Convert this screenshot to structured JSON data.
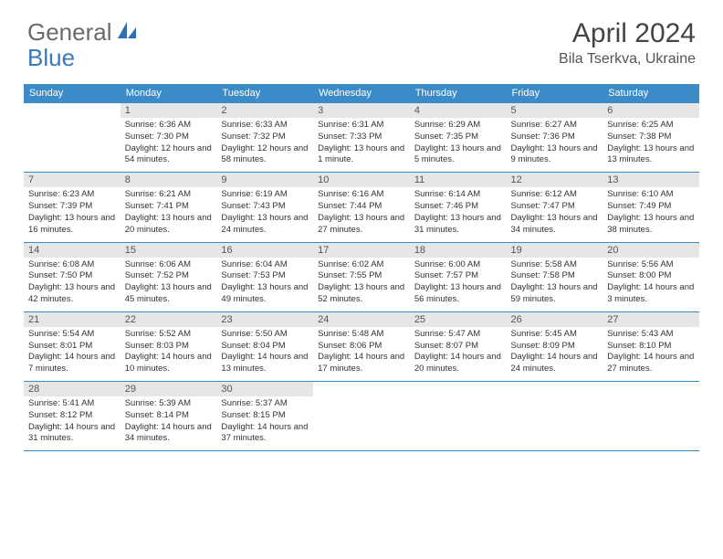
{
  "brand": {
    "part1": "General",
    "part2": "Blue"
  },
  "title": "April 2024",
  "location": "Bila Tserkva, Ukraine",
  "colors": {
    "header_bg": "#3b8bc9",
    "header_fg": "#ffffff",
    "daynum_bg": "#e6e6e6",
    "rule": "#3b8bc9",
    "text": "#333333"
  },
  "dayNames": [
    "Sunday",
    "Monday",
    "Tuesday",
    "Wednesday",
    "Thursday",
    "Friday",
    "Saturday"
  ],
  "weeks": [
    [
      {
        "n": "",
        "sr": "",
        "ss": "",
        "dl": ""
      },
      {
        "n": "1",
        "sr": "Sunrise: 6:36 AM",
        "ss": "Sunset: 7:30 PM",
        "dl": "Daylight: 12 hours and 54 minutes."
      },
      {
        "n": "2",
        "sr": "Sunrise: 6:33 AM",
        "ss": "Sunset: 7:32 PM",
        "dl": "Daylight: 12 hours and 58 minutes."
      },
      {
        "n": "3",
        "sr": "Sunrise: 6:31 AM",
        "ss": "Sunset: 7:33 PM",
        "dl": "Daylight: 13 hours and 1 minute."
      },
      {
        "n": "4",
        "sr": "Sunrise: 6:29 AM",
        "ss": "Sunset: 7:35 PM",
        "dl": "Daylight: 13 hours and 5 minutes."
      },
      {
        "n": "5",
        "sr": "Sunrise: 6:27 AM",
        "ss": "Sunset: 7:36 PM",
        "dl": "Daylight: 13 hours and 9 minutes."
      },
      {
        "n": "6",
        "sr": "Sunrise: 6:25 AM",
        "ss": "Sunset: 7:38 PM",
        "dl": "Daylight: 13 hours and 13 minutes."
      }
    ],
    [
      {
        "n": "7",
        "sr": "Sunrise: 6:23 AM",
        "ss": "Sunset: 7:39 PM",
        "dl": "Daylight: 13 hours and 16 minutes."
      },
      {
        "n": "8",
        "sr": "Sunrise: 6:21 AM",
        "ss": "Sunset: 7:41 PM",
        "dl": "Daylight: 13 hours and 20 minutes."
      },
      {
        "n": "9",
        "sr": "Sunrise: 6:19 AM",
        "ss": "Sunset: 7:43 PM",
        "dl": "Daylight: 13 hours and 24 minutes."
      },
      {
        "n": "10",
        "sr": "Sunrise: 6:16 AM",
        "ss": "Sunset: 7:44 PM",
        "dl": "Daylight: 13 hours and 27 minutes."
      },
      {
        "n": "11",
        "sr": "Sunrise: 6:14 AM",
        "ss": "Sunset: 7:46 PM",
        "dl": "Daylight: 13 hours and 31 minutes."
      },
      {
        "n": "12",
        "sr": "Sunrise: 6:12 AM",
        "ss": "Sunset: 7:47 PM",
        "dl": "Daylight: 13 hours and 34 minutes."
      },
      {
        "n": "13",
        "sr": "Sunrise: 6:10 AM",
        "ss": "Sunset: 7:49 PM",
        "dl": "Daylight: 13 hours and 38 minutes."
      }
    ],
    [
      {
        "n": "14",
        "sr": "Sunrise: 6:08 AM",
        "ss": "Sunset: 7:50 PM",
        "dl": "Daylight: 13 hours and 42 minutes."
      },
      {
        "n": "15",
        "sr": "Sunrise: 6:06 AM",
        "ss": "Sunset: 7:52 PM",
        "dl": "Daylight: 13 hours and 45 minutes."
      },
      {
        "n": "16",
        "sr": "Sunrise: 6:04 AM",
        "ss": "Sunset: 7:53 PM",
        "dl": "Daylight: 13 hours and 49 minutes."
      },
      {
        "n": "17",
        "sr": "Sunrise: 6:02 AM",
        "ss": "Sunset: 7:55 PM",
        "dl": "Daylight: 13 hours and 52 minutes."
      },
      {
        "n": "18",
        "sr": "Sunrise: 6:00 AM",
        "ss": "Sunset: 7:57 PM",
        "dl": "Daylight: 13 hours and 56 minutes."
      },
      {
        "n": "19",
        "sr": "Sunrise: 5:58 AM",
        "ss": "Sunset: 7:58 PM",
        "dl": "Daylight: 13 hours and 59 minutes."
      },
      {
        "n": "20",
        "sr": "Sunrise: 5:56 AM",
        "ss": "Sunset: 8:00 PM",
        "dl": "Daylight: 14 hours and 3 minutes."
      }
    ],
    [
      {
        "n": "21",
        "sr": "Sunrise: 5:54 AM",
        "ss": "Sunset: 8:01 PM",
        "dl": "Daylight: 14 hours and 7 minutes."
      },
      {
        "n": "22",
        "sr": "Sunrise: 5:52 AM",
        "ss": "Sunset: 8:03 PM",
        "dl": "Daylight: 14 hours and 10 minutes."
      },
      {
        "n": "23",
        "sr": "Sunrise: 5:50 AM",
        "ss": "Sunset: 8:04 PM",
        "dl": "Daylight: 14 hours and 13 minutes."
      },
      {
        "n": "24",
        "sr": "Sunrise: 5:48 AM",
        "ss": "Sunset: 8:06 PM",
        "dl": "Daylight: 14 hours and 17 minutes."
      },
      {
        "n": "25",
        "sr": "Sunrise: 5:47 AM",
        "ss": "Sunset: 8:07 PM",
        "dl": "Daylight: 14 hours and 20 minutes."
      },
      {
        "n": "26",
        "sr": "Sunrise: 5:45 AM",
        "ss": "Sunset: 8:09 PM",
        "dl": "Daylight: 14 hours and 24 minutes."
      },
      {
        "n": "27",
        "sr": "Sunrise: 5:43 AM",
        "ss": "Sunset: 8:10 PM",
        "dl": "Daylight: 14 hours and 27 minutes."
      }
    ],
    [
      {
        "n": "28",
        "sr": "Sunrise: 5:41 AM",
        "ss": "Sunset: 8:12 PM",
        "dl": "Daylight: 14 hours and 31 minutes."
      },
      {
        "n": "29",
        "sr": "Sunrise: 5:39 AM",
        "ss": "Sunset: 8:14 PM",
        "dl": "Daylight: 14 hours and 34 minutes."
      },
      {
        "n": "30",
        "sr": "Sunrise: 5:37 AM",
        "ss": "Sunset: 8:15 PM",
        "dl": "Daylight: 14 hours and 37 minutes."
      },
      {
        "n": "",
        "sr": "",
        "ss": "",
        "dl": ""
      },
      {
        "n": "",
        "sr": "",
        "ss": "",
        "dl": ""
      },
      {
        "n": "",
        "sr": "",
        "ss": "",
        "dl": ""
      },
      {
        "n": "",
        "sr": "",
        "ss": "",
        "dl": ""
      }
    ]
  ]
}
